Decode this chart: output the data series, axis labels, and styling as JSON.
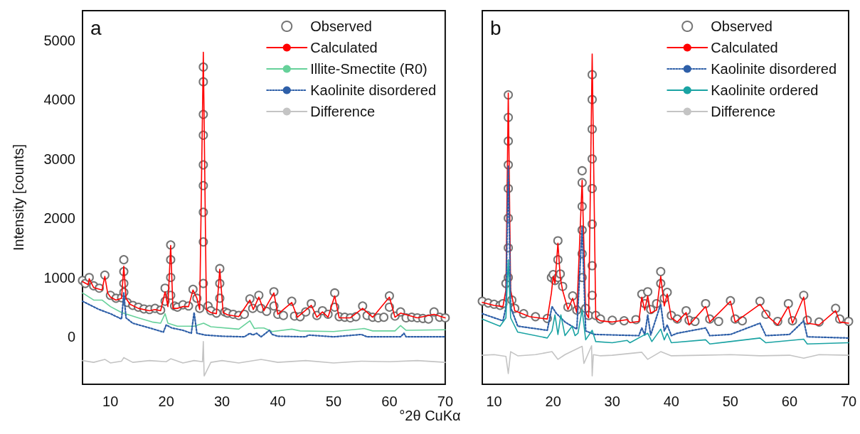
{
  "chart_data": [
    {
      "type": "line",
      "title": "a",
      "xlabel": "°2θ CuKα",
      "ylabel": "Intensity [counts]",
      "xlim": [
        5,
        70
      ],
      "ylim": [
        -800,
        5500
      ],
      "xticks": [
        10,
        20,
        30,
        40,
        50,
        60,
        70
      ],
      "yticks": [
        0,
        1000,
        2000,
        3000,
        4000,
        5000
      ],
      "grid": false,
      "legend": "top right",
      "marker": "none",
      "series": [
        {
          "name": "Observed",
          "type": "scatter",
          "marker": "circle",
          "color": "#666666",
          "x": [
            5,
            5.5,
            6.2,
            7,
            8,
            9,
            10,
            11,
            12,
            12.4,
            12.4,
            12.4,
            12.4,
            13,
            14,
            15,
            16,
            17,
            18,
            19,
            19.8,
            19.8,
            20.8,
            20.8,
            20.8,
            20.8,
            21.5,
            22,
            23,
            24,
            24.8,
            25.5,
            26,
            26.65,
            26.65,
            26.65,
            26.65,
            26.65,
            26.65,
            26.65,
            26.65,
            26.65,
            27.5,
            28,
            29,
            29.6,
            29.6,
            29.6,
            30.5,
            31,
            32,
            33,
            34,
            35,
            35.5,
            36.6,
            37,
            38,
            39.3,
            39.3,
            40,
            41,
            42.5,
            43,
            44,
            45,
            46,
            47,
            48,
            49,
            50.2,
            50.2,
            51,
            52,
            53,
            54,
            55.2,
            56,
            57,
            58,
            59,
            60,
            60,
            61,
            62,
            63,
            64,
            65,
            66,
            67,
            68,
            69,
            70
          ],
          "values": [
            950,
            900,
            1000,
            860,
            820,
            1040,
            700,
            650,
            660,
            1300,
            1100,
            900,
            750,
            580,
            530,
            500,
            470,
            460,
            480,
            450,
            820,
            600,
            1550,
            1300,
            1000,
            700,
            520,
            500,
            540,
            520,
            800,
            650,
            480,
            4550,
            4300,
            3750,
            3400,
            2900,
            2550,
            2100,
            1600,
            900,
            520,
            440,
            400,
            1150,
            900,
            650,
            420,
            400,
            380,
            360,
            380,
            640,
            480,
            700,
            480,
            430,
            760,
            520,
            380,
            360,
            600,
            350,
            340,
            420,
            560,
            360,
            440,
            380,
            740,
            500,
            340,
            330,
            320,
            340,
            520,
            360,
            330,
            320,
            330,
            690,
            500,
            350,
            420,
            320,
            330,
            320,
            310,
            300,
            420,
            330,
            320
          ]
        },
        {
          "name": "Calculated",
          "color": "#ff0000",
          "x": [
            5,
            6,
            6.2,
            7,
            8.5,
            9,
            9.5,
            10,
            11,
            12,
            12.4,
            12.8,
            13.5,
            15,
            17,
            18,
            19,
            19.8,
            20.3,
            20.8,
            21.2,
            22,
            23,
            24,
            24.8,
            25.5,
            26,
            26.65,
            27.2,
            28,
            29,
            29.6,
            30.2,
            31,
            33,
            35,
            35.6,
            36.6,
            37.5,
            39.3,
            40,
            42.5,
            43.5,
            46,
            47,
            48,
            49,
            50.2,
            51,
            53,
            55.2,
            57,
            60,
            61,
            62,
            65,
            68,
            70
          ],
          "values": [
            930,
            880,
            980,
            830,
            790,
            1020,
            740,
            670,
            620,
            650,
            1190,
            650,
            550,
            480,
            440,
            460,
            440,
            760,
            510,
            1540,
            480,
            480,
            510,
            510,
            790,
            650,
            460,
            4800,
            460,
            410,
            390,
            1140,
            410,
            370,
            340,
            620,
            460,
            670,
            440,
            740,
            380,
            580,
            330,
            530,
            330,
            420,
            330,
            690,
            320,
            320,
            480,
            330,
            670,
            330,
            400,
            320,
            380,
            320
          ]
        },
        {
          "name": "Illite-Smectite (R0)",
          "color": "#66d19a",
          "x": [
            5,
            7,
            8.5,
            10,
            12,
            15,
            17.5,
            19,
            19.8,
            20.3,
            22,
            25,
            26.7,
            28,
            33,
            35,
            35.8,
            36.5,
            37.5,
            39,
            42.5,
            44,
            50,
            55.5,
            57,
            61,
            62,
            63,
            70
          ],
          "values": [
            740,
            620,
            620,
            510,
            410,
            320,
            250,
            230,
            390,
            230,
            180,
            180,
            230,
            170,
            130,
            270,
            140,
            150,
            150,
            90,
            130,
            100,
            90,
            140,
            100,
            100,
            190,
            110,
            120
          ]
        },
        {
          "name": "Kaolinite disordered",
          "color": "#2e5fa8",
          "line_style": "dotted",
          "x": [
            5,
            8,
            10,
            12,
            12.4,
            12.8,
            14,
            17,
            19.5,
            20,
            21,
            23,
            24.5,
            25,
            25.5,
            27,
            30,
            34,
            35,
            35.5,
            36.2,
            37,
            38.5,
            39,
            40,
            45,
            45.5,
            50,
            55,
            56,
            62,
            62.6,
            63,
            70
          ],
          "values": [
            600,
            460,
            390,
            300,
            740,
            320,
            230,
            150,
            80,
            200,
            150,
            110,
            60,
            410,
            60,
            30,
            10,
            0,
            60,
            30,
            60,
            0,
            110,
            40,
            10,
            0,
            30,
            0,
            40,
            0,
            0,
            60,
            0,
            0
          ]
        },
        {
          "name": "Difference",
          "color": "#c4c4c4",
          "x": [
            5,
            7,
            9,
            10,
            12,
            12.4,
            14,
            17,
            20,
            20.8,
            23,
            25,
            26.5,
            26.65,
            26.8,
            28,
            30,
            33,
            35,
            37,
            40,
            45,
            50,
            55,
            60,
            65,
            70
          ],
          "values": [
            -400,
            -430,
            -380,
            -440,
            -410,
            -350,
            -430,
            -400,
            -420,
            -370,
            -440,
            -400,
            -420,
            -80,
            -660,
            -430,
            -400,
            -440,
            -410,
            -380,
            -430,
            -400,
            -440,
            -410,
            -420,
            -400,
            -430
          ]
        }
      ]
    },
    {
      "type": "line",
      "title": "b",
      "xlim": [
        8,
        70
      ],
      "ylim": [
        -800,
        5500
      ],
      "xticks": [
        10,
        20,
        30,
        40,
        50,
        60,
        70
      ],
      "tick_labels": "x",
      "grid": false,
      "legend": "top right",
      "marker": "none",
      "series": [
        {
          "name": "Observed",
          "type": "scatter",
          "marker": "circle",
          "color": "#666666",
          "x": [
            8,
            9,
            10,
            11,
            11.5,
            12,
            12.4,
            12.4,
            12.4,
            12.4,
            12.4,
            12.4,
            12.4,
            12.4,
            13,
            13.5,
            15,
            17,
            19,
            19.7,
            20,
            20.3,
            20.8,
            20.8,
            20.8,
            21.2,
            21.6,
            22.5,
            23.3,
            24,
            24.9,
            24.9,
            24.9,
            24.9,
            24.9,
            24.9,
            25.5,
            26,
            26.6,
            26.6,
            26.6,
            26.6,
            26.6,
            26.6,
            26.6,
            26.6,
            27.2,
            28,
            30,
            32,
            34,
            35,
            35.5,
            36,
            36.5,
            37.5,
            38.2,
            38.2,
            38.8,
            39.3,
            40,
            41,
            42.5,
            43,
            44,
            45.8,
            46.5,
            48,
            50,
            50.8,
            52,
            55,
            56,
            58,
            59.8,
            60.5,
            62.4,
            63,
            65,
            67.8,
            68.5,
            70
          ],
          "values": [
            600,
            570,
            550,
            530,
            560,
            900,
            4080,
            3700,
            3300,
            2900,
            2500,
            2000,
            1500,
            1000,
            620,
            480,
            390,
            340,
            310,
            1000,
            1050,
            950,
            1620,
            1300,
            1000,
            1060,
            850,
            500,
            690,
            450,
            2800,
            2600,
            2200,
            1800,
            1400,
            1000,
            480,
            360,
            4420,
            4000,
            3500,
            3000,
            2500,
            1900,
            1200,
            700,
            360,
            300,
            280,
            270,
            290,
            720,
            560,
            760,
            460,
            560,
            1100,
            900,
            650,
            750,
            360,
            300,
            440,
            280,
            260,
            560,
            300,
            260,
            610,
            300,
            270,
            600,
            380,
            260,
            560,
            270,
            700,
            280,
            250,
            480,
            300,
            260
          ]
        },
        {
          "name": "Calculated",
          "color": "#ff0000",
          "x": [
            8,
            10,
            11.5,
            12,
            12.4,
            12.8,
            13.5,
            16,
            19,
            19.7,
            20,
            20.3,
            20.8,
            21.2,
            21.6,
            22.5,
            23.3,
            24,
            24.9,
            25.5,
            26,
            26.6,
            27.2,
            28,
            30,
            32.5,
            33,
            34.5,
            35,
            35.5,
            36,
            36.5,
            37.5,
            38.2,
            38.8,
            39.3,
            40,
            41,
            42.5,
            43,
            45.8,
            46.5,
            50,
            50.8,
            55,
            56.5,
            58,
            59.8,
            60.5,
            62.4,
            63,
            65,
            67.8,
            68.5,
            70
          ],
          "values": [
            580,
            530,
            510,
            790,
            4110,
            790,
            440,
            340,
            300,
            740,
            1020,
            900,
            1580,
            1000,
            780,
            460,
            650,
            410,
            2640,
            410,
            320,
            4770,
            320,
            270,
            250,
            290,
            240,
            260,
            670,
            450,
            690,
            400,
            450,
            1020,
            520,
            720,
            320,
            250,
            410,
            200,
            510,
            250,
            600,
            250,
            550,
            330,
            200,
            510,
            230,
            670,
            230,
            200,
            440,
            250,
            230
          ]
        },
        {
          "name": "Kaolinite disordered",
          "color": "#2e5fa8",
          "line_style": "dotted",
          "x": [
            8,
            11.5,
            12,
            12.4,
            12.8,
            14,
            19,
            19.8,
            20.5,
            22,
            24,
            24.9,
            25.5,
            27,
            34.5,
            35,
            35.5,
            36,
            36.5,
            38.2,
            38.8,
            39.3,
            40,
            41,
            45.8,
            46.5,
            50,
            55,
            56,
            60,
            62.4,
            63,
            70
          ],
          "values": [
            390,
            270,
            500,
            2890,
            500,
            180,
            110,
            510,
            400,
            250,
            130,
            1860,
            100,
            40,
            20,
            150,
            30,
            370,
            30,
            550,
            100,
            200,
            20,
            60,
            150,
            20,
            40,
            230,
            20,
            40,
            270,
            0,
            -20
          ]
        },
        {
          "name": "Kaolinite ordered",
          "color": "#1aa3a3",
          "x": [
            8,
            11,
            12,
            12.4,
            12.8,
            14,
            19,
            19.8,
            20.3,
            20.8,
            21.3,
            22,
            23.2,
            23.7,
            24.2,
            24.9,
            25.5,
            26.6,
            27.2,
            30,
            32.5,
            33,
            35,
            36,
            36.7,
            38.2,
            38.8,
            39.3,
            40,
            45.8,
            46.5,
            55,
            56,
            62.4,
            63,
            70
          ],
          "values": [
            300,
            180,
            320,
            1300,
            320,
            80,
            -20,
            100,
            370,
            40,
            370,
            20,
            180,
            20,
            60,
            460,
            -50,
            110,
            -80,
            -100,
            -60,
            -100,
            10,
            60,
            -80,
            130,
            -50,
            60,
            -100,
            -50,
            -120,
            -20,
            -100,
            -40,
            -120,
            -100
          ]
        },
        {
          "name": "Difference",
          "color": "#c4c4c4",
          "x": [
            8,
            10,
            12,
            12.4,
            12.8,
            14,
            17,
            19.8,
            20.8,
            22,
            24.9,
            25.2,
            26.5,
            26.6,
            26.8,
            28,
            30,
            35,
            36,
            38.2,
            40,
            45,
            50,
            55,
            60,
            62.4,
            65,
            70
          ],
          "values": [
            -310,
            -300,
            -330,
            -620,
            -250,
            -320,
            -300,
            -250,
            -380,
            -300,
            -160,
            -450,
            -150,
            -660,
            -300,
            -320,
            -310,
            -260,
            -380,
            -250,
            -320,
            -310,
            -300,
            -320,
            -310,
            -360,
            -300,
            -310
          ]
        }
      ]
    }
  ]
}
